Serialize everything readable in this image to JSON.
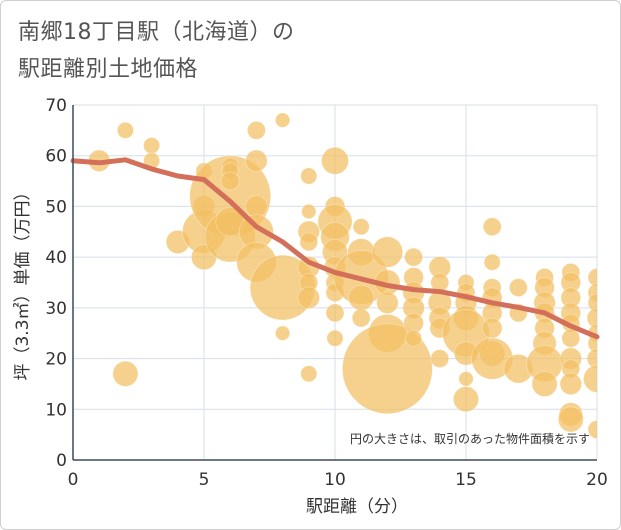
{
  "title": {
    "line1": "南郷18丁目駅（北海道）の",
    "line2": "駅距離別土地価格"
  },
  "colors": {
    "bubble": "#f3bf63",
    "line": "#d4705a",
    "grid": "#d5dfea",
    "axis": "#3a4a5a"
  },
  "chart_data": {
    "type": "scatter",
    "xlabel": "駅距離（分）",
    "ylabel": "坪（3.3㎡）単価（万円）",
    "xlim": [
      0,
      20
    ],
    "ylim": [
      0,
      70
    ],
    "xticks": [
      "0",
      "5",
      "10",
      "15",
      "20"
    ],
    "yticks": [
      "0",
      "10",
      "20",
      "30",
      "40",
      "50",
      "60",
      "70"
    ],
    "grid": true,
    "annotation": "円の大きさは、取引のあった物件面積を示す",
    "trend": {
      "x": [
        0,
        1,
        2,
        3,
        4,
        5,
        6,
        7,
        8,
        9,
        10,
        11,
        12,
        13,
        14,
        15,
        16,
        17,
        18,
        19,
        20
      ],
      "y": [
        59,
        58.6,
        59.2,
        57.4,
        56,
        55.3,
        51,
        46,
        43,
        39,
        37,
        35.7,
        34.4,
        33.6,
        33.2,
        32.2,
        31,
        30.1,
        29,
        26.4,
        24.3
      ]
    },
    "points": [
      {
        "x": 1,
        "y": 59,
        "s": 1.2
      },
      {
        "x": 2,
        "y": 65,
        "s": 0.9
      },
      {
        "x": 3,
        "y": 62,
        "s": 0.9
      },
      {
        "x": 3,
        "y": 59,
        "s": 0.9
      },
      {
        "x": 2,
        "y": 17,
        "s": 1.4
      },
      {
        "x": 4,
        "y": 43,
        "s": 1.3
      },
      {
        "x": 5,
        "y": 57,
        "s": 0.9
      },
      {
        "x": 5,
        "y": 45,
        "s": 2.4
      },
      {
        "x": 5,
        "y": 40,
        "s": 1.4
      },
      {
        "x": 5,
        "y": 50,
        "s": 1.2
      },
      {
        "x": 6,
        "y": 52,
        "s": 4.5
      },
      {
        "x": 6,
        "y": 58,
        "s": 0.9
      },
      {
        "x": 6,
        "y": 57,
        "s": 0.9
      },
      {
        "x": 6,
        "y": 55,
        "s": 1.0
      },
      {
        "x": 6,
        "y": 44,
        "s": 2.8
      },
      {
        "x": 6,
        "y": 47,
        "s": 1.6
      },
      {
        "x": 7,
        "y": 65,
        "s": 1.0
      },
      {
        "x": 7,
        "y": 59,
        "s": 1.2
      },
      {
        "x": 7,
        "y": 50,
        "s": 1.2
      },
      {
        "x": 7,
        "y": 45,
        "s": 1.9
      },
      {
        "x": 7,
        "y": 39,
        "s": 2.2
      },
      {
        "x": 8,
        "y": 67,
        "s": 0.8
      },
      {
        "x": 8,
        "y": 34,
        "s": 3.6
      },
      {
        "x": 8,
        "y": 25,
        "s": 0.8
      },
      {
        "x": 9,
        "y": 56,
        "s": 0.9
      },
      {
        "x": 9,
        "y": 49,
        "s": 0.8
      },
      {
        "x": 9,
        "y": 45,
        "s": 1.2
      },
      {
        "x": 9,
        "y": 43,
        "s": 1.0
      },
      {
        "x": 9,
        "y": 38,
        "s": 1.2
      },
      {
        "x": 9,
        "y": 35,
        "s": 1.0
      },
      {
        "x": 9,
        "y": 32,
        "s": 1.2
      },
      {
        "x": 9,
        "y": 17,
        "s": 0.9
      },
      {
        "x": 10,
        "y": 59,
        "s": 1.5
      },
      {
        "x": 10,
        "y": 50,
        "s": 1.1
      },
      {
        "x": 10,
        "y": 47,
        "s": 1.9
      },
      {
        "x": 10,
        "y": 44,
        "s": 1.6
      },
      {
        "x": 10,
        "y": 41,
        "s": 1.4
      },
      {
        "x": 10,
        "y": 38,
        "s": 1.2
      },
      {
        "x": 10,
        "y": 35,
        "s": 1.0
      },
      {
        "x": 10,
        "y": 33,
        "s": 1.0
      },
      {
        "x": 10,
        "y": 29,
        "s": 1.0
      },
      {
        "x": 10,
        "y": 24,
        "s": 0.9
      },
      {
        "x": 11,
        "y": 46,
        "s": 0.9
      },
      {
        "x": 11,
        "y": 41,
        "s": 1.5
      },
      {
        "x": 11,
        "y": 36,
        "s": 3.0
      },
      {
        "x": 11,
        "y": 32,
        "s": 1.4
      },
      {
        "x": 11,
        "y": 28,
        "s": 1.0
      },
      {
        "x": 12,
        "y": 41,
        "s": 1.7
      },
      {
        "x": 12,
        "y": 35,
        "s": 1.4
      },
      {
        "x": 12,
        "y": 31,
        "s": 1.2
      },
      {
        "x": 12,
        "y": 25,
        "s": 2.1
      },
      {
        "x": 12,
        "y": 18,
        "s": 5.0
      },
      {
        "x": 13,
        "y": 40,
        "s": 1.0
      },
      {
        "x": 13,
        "y": 36,
        "s": 1.1
      },
      {
        "x": 13,
        "y": 33,
        "s": 1.2
      },
      {
        "x": 13,
        "y": 30,
        "s": 1.2
      },
      {
        "x": 13,
        "y": 27,
        "s": 1.1
      },
      {
        "x": 13,
        "y": 24,
        "s": 0.9
      },
      {
        "x": 14,
        "y": 38,
        "s": 1.2
      },
      {
        "x": 14,
        "y": 35,
        "s": 1.0
      },
      {
        "x": 14,
        "y": 31,
        "s": 1.3
      },
      {
        "x": 14,
        "y": 28,
        "s": 1.2
      },
      {
        "x": 14,
        "y": 26,
        "s": 1.1
      },
      {
        "x": 14,
        "y": 20,
        "s": 1.0
      },
      {
        "x": 15,
        "y": 35,
        "s": 0.9
      },
      {
        "x": 15,
        "y": 33,
        "s": 1.0
      },
      {
        "x": 15,
        "y": 31,
        "s": 1.2
      },
      {
        "x": 15,
        "y": 28,
        "s": 1.4
      },
      {
        "x": 15,
        "y": 25,
        "s": 2.6
      },
      {
        "x": 15,
        "y": 21,
        "s": 1.3
      },
      {
        "x": 15,
        "y": 16,
        "s": 0.8
      },
      {
        "x": 15,
        "y": 12,
        "s": 1.4
      },
      {
        "x": 16,
        "y": 46,
        "s": 1.0
      },
      {
        "x": 16,
        "y": 39,
        "s": 0.9
      },
      {
        "x": 16,
        "y": 34,
        "s": 1.0
      },
      {
        "x": 16,
        "y": 32,
        "s": 1.1
      },
      {
        "x": 16,
        "y": 29,
        "s": 1.1
      },
      {
        "x": 16,
        "y": 26,
        "s": 1.1
      },
      {
        "x": 16,
        "y": 21,
        "s": 1.4
      },
      {
        "x": 16,
        "y": 20,
        "s": 2.3
      },
      {
        "x": 17,
        "y": 34,
        "s": 1.0
      },
      {
        "x": 17,
        "y": 29,
        "s": 1.0
      },
      {
        "x": 17,
        "y": 18,
        "s": 1.6
      },
      {
        "x": 18,
        "y": 36,
        "s": 1.0
      },
      {
        "x": 18,
        "y": 34,
        "s": 1.1
      },
      {
        "x": 18,
        "y": 31,
        "s": 1.2
      },
      {
        "x": 18,
        "y": 29,
        "s": 1.1
      },
      {
        "x": 18,
        "y": 26,
        "s": 1.1
      },
      {
        "x": 18,
        "y": 23,
        "s": 1.3
      },
      {
        "x": 18,
        "y": 19,
        "s": 2.0
      },
      {
        "x": 18,
        "y": 15,
        "s": 1.4
      },
      {
        "x": 19,
        "y": 37,
        "s": 1.0
      },
      {
        "x": 19,
        "y": 35,
        "s": 1.1
      },
      {
        "x": 19,
        "y": 32,
        "s": 1.1
      },
      {
        "x": 19,
        "y": 29,
        "s": 1.1
      },
      {
        "x": 19,
        "y": 27,
        "s": 1.0
      },
      {
        "x": 19,
        "y": 24,
        "s": 1.0
      },
      {
        "x": 19,
        "y": 20,
        "s": 1.2
      },
      {
        "x": 19,
        "y": 18,
        "s": 1.0
      },
      {
        "x": 19,
        "y": 15,
        "s": 1.2
      },
      {
        "x": 19,
        "y": 9,
        "s": 1.3
      },
      {
        "x": 19,
        "y": 8,
        "s": 1.4
      },
      {
        "x": 20,
        "y": 36,
        "s": 1.0
      },
      {
        "x": 20,
        "y": 33,
        "s": 1.0
      },
      {
        "x": 20,
        "y": 31,
        "s": 1.0
      },
      {
        "x": 20,
        "y": 28,
        "s": 1.1
      },
      {
        "x": 20,
        "y": 25,
        "s": 1.0
      },
      {
        "x": 20,
        "y": 23,
        "s": 1.0
      },
      {
        "x": 20,
        "y": 20,
        "s": 1.1
      },
      {
        "x": 20,
        "y": 16,
        "s": 1.5
      },
      {
        "x": 20,
        "y": 6,
        "s": 1.0
      }
    ]
  }
}
